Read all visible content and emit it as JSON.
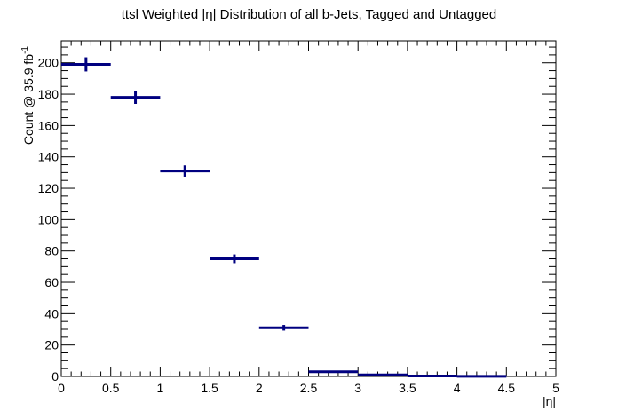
{
  "chart_data": {
    "type": "scatter",
    "title": "ttsl Weighted |η| Distribution of all b-Jets, Tagged and Untagged",
    "xlabel": "|η|",
    "ylabel": "Count @ 35.9 fb",
    "ylabel_superscript": "-1",
    "xlim": [
      0,
      5
    ],
    "ylim": [
      0,
      214
    ],
    "x_ticks": [
      0,
      0.5,
      1,
      1.5,
      2,
      2.5,
      3,
      3.5,
      4,
      4.5,
      5
    ],
    "x_tick_labels": [
      "0",
      "0.5",
      "1",
      "1.5",
      "2",
      "2.5",
      "3",
      "3.5",
      "4",
      "4.5",
      "5"
    ],
    "y_ticks": [
      0,
      20,
      40,
      60,
      80,
      100,
      120,
      140,
      160,
      180,
      200
    ],
    "y_tick_labels": [
      "0",
      "20",
      "40",
      "60",
      "80",
      "100",
      "120",
      "140",
      "160",
      "180",
      "200"
    ],
    "bin_width": 0.5,
    "series": [
      {
        "color": "#000080",
        "x": [
          0.25,
          0.75,
          1.25,
          1.75,
          2.25,
          2.75,
          3.25,
          3.75,
          4.25
        ],
        "y": [
          199,
          178,
          131,
          75,
          31,
          3,
          1,
          0.3,
          0.1
        ],
        "yerr": [
          4.5,
          4.2,
          3.6,
          2.8,
          1.8,
          0.5,
          0.3,
          0.15,
          0.1
        ]
      }
    ],
    "grid": false,
    "legend": "none"
  }
}
